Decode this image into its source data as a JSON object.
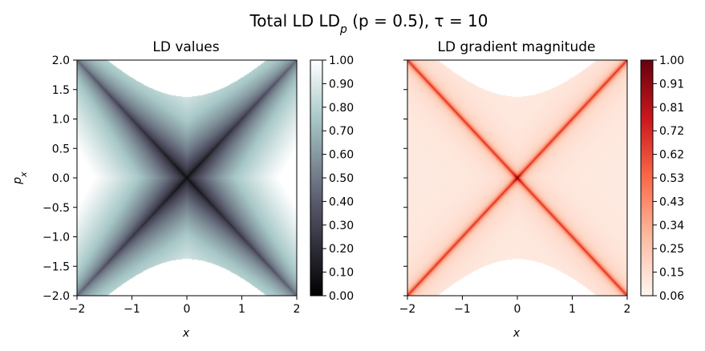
{
  "figure": {
    "suptitle_main": "Total LD LD",
    "suptitle_sub": "p",
    "suptitle_rest": " (p = 0.5), τ = 10"
  },
  "chart_data": [
    {
      "type": "heatmap",
      "title": "LD values",
      "xlabel": "x",
      "ylabel": "p",
      "ylabel_sub": "x",
      "xlim": [
        -2,
        2
      ],
      "ylim": [
        -2,
        2
      ],
      "x_ticks": [
        "−2",
        "−1",
        "0",
        "1",
        "2"
      ],
      "y_ticks": [
        "2.0",
        "1.5",
        "1.0",
        "0.5",
        "0.0",
        "−0.5",
        "−1.0",
        "−1.5",
        "−2.0"
      ],
      "colormap": "bone",
      "colorbar": {
        "min": 0.0,
        "max": 1.0,
        "ticks": [
          "1.00",
          "0.90",
          "0.80",
          "0.70",
          "0.60",
          "0.50",
          "0.40",
          "0.30",
          "0.20",
          "0.10",
          "0.00"
        ]
      },
      "field": "normalized Lagrangian descriptor, minimum at (0,0), undefined (white) beyond |p_x| ≈ sqrt(x² + 1.9)",
      "grid": false
    },
    {
      "type": "heatmap",
      "title": "LD gradient magnitude",
      "xlabel": "x",
      "xlim": [
        -2,
        2
      ],
      "ylim": [
        -2,
        2
      ],
      "x_ticks": [
        "−2",
        "−1",
        "0",
        "1",
        "2"
      ],
      "colormap": "reds",
      "colorbar": {
        "min": 0.06,
        "max": 1.0,
        "ticks": [
          "1.00",
          "0.91",
          "0.81",
          "0.72",
          "0.62",
          "0.53",
          "0.43",
          "0.34",
          "0.25",
          "0.15",
          "0.06"
        ]
      },
      "field": "gradient magnitude, maxima along the lines p_x = x and p_x = −x",
      "grid": false
    }
  ],
  "colors": {
    "bone_stops": [
      "#000000",
      "#545467",
      "#a7c7c7",
      "#ffffff"
    ],
    "reds_stops": [
      "#fff5f0",
      "#fcbba1",
      "#fb6a4a",
      "#cb181d",
      "#67000d"
    ]
  }
}
